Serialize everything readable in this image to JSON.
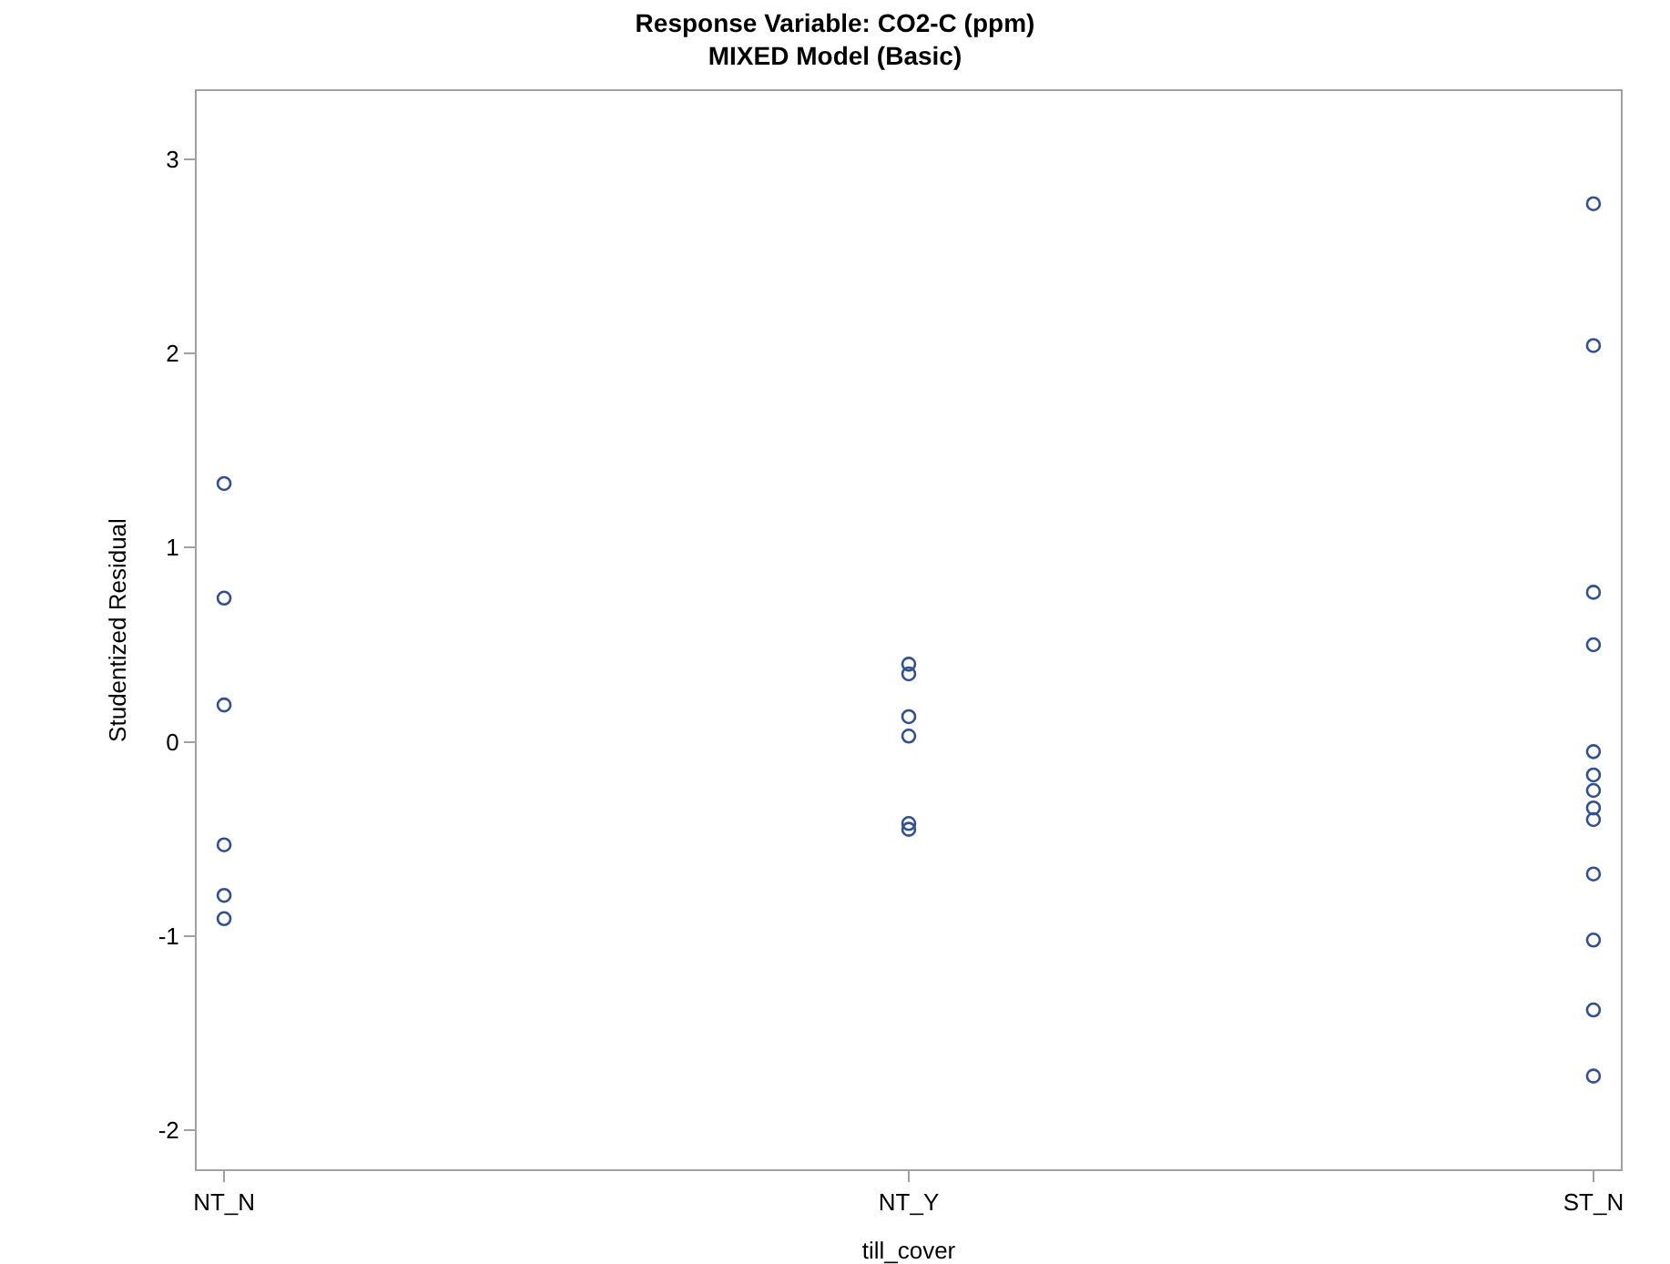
{
  "chart_data": {
    "type": "scatter",
    "title": "Response Variable: CO2-C (ppm)",
    "subtitle": "MIXED Model (Basic)",
    "xlabel": "till_cover",
    "ylabel": "Studentized Residual",
    "categories": [
      "NT_N",
      "NT_Y",
      "ST_N"
    ],
    "series": [
      {
        "color": "#31508f",
        "x": [
          "NT_N",
          "NT_N",
          "NT_N",
          "NT_N",
          "NT_N",
          "NT_N",
          "NT_Y",
          "NT_Y",
          "NT_Y",
          "NT_Y",
          "NT_Y",
          "NT_Y",
          "ST_N",
          "ST_N",
          "ST_N",
          "ST_N",
          "ST_N",
          "ST_N",
          "ST_N",
          "ST_N",
          "ST_N",
          "ST_N",
          "ST_N",
          "ST_N",
          "ST_N"
        ],
        "values": [
          1.33,
          0.74,
          0.19,
          -0.53,
          -0.79,
          -0.91,
          0.4,
          0.35,
          0.13,
          0.03,
          -0.42,
          -0.45,
          2.77,
          2.04,
          0.77,
          0.5,
          -0.05,
          -0.17,
          -0.25,
          -0.34,
          -0.4,
          -0.68,
          -1.02,
          -1.38,
          -1.72
        ]
      }
    ],
    "ylim": [
      -2.2,
      3.35
    ],
    "yticks": [
      -2,
      -1,
      0,
      1,
      2,
      3
    ],
    "grid": false,
    "marker": "circle"
  }
}
